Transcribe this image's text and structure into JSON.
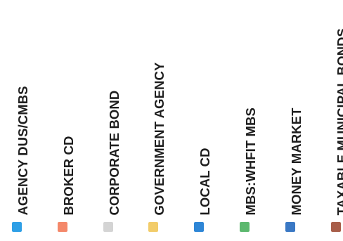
{
  "chart_data": {
    "type": "bar",
    "title": "",
    "xlabel": "",
    "ylabel": "",
    "legend_placement": "bottom",
    "legend": [
      {
        "label": "AGENCY DUS/CMBS",
        "color": "#2e9fe6"
      },
      {
        "label": "BROKER CD",
        "color": "#f4886a"
      },
      {
        "label": "CORPORATE BOND",
        "color": "#d4d4d4"
      },
      {
        "label": "GOVERNMENT AGENCY",
        "color": "#f2cc6a"
      },
      {
        "label": "LOCAL CD",
        "color": "#2e86d6"
      },
      {
        "label": "MBS:WHFIT MBS",
        "color": "#5cb86e"
      },
      {
        "label": "MONEY MARKET",
        "color": "#3a78c4"
      },
      {
        "label": "TAXABLE MUNICIPAL BONDS",
        "color": "#a85e4a"
      }
    ]
  }
}
